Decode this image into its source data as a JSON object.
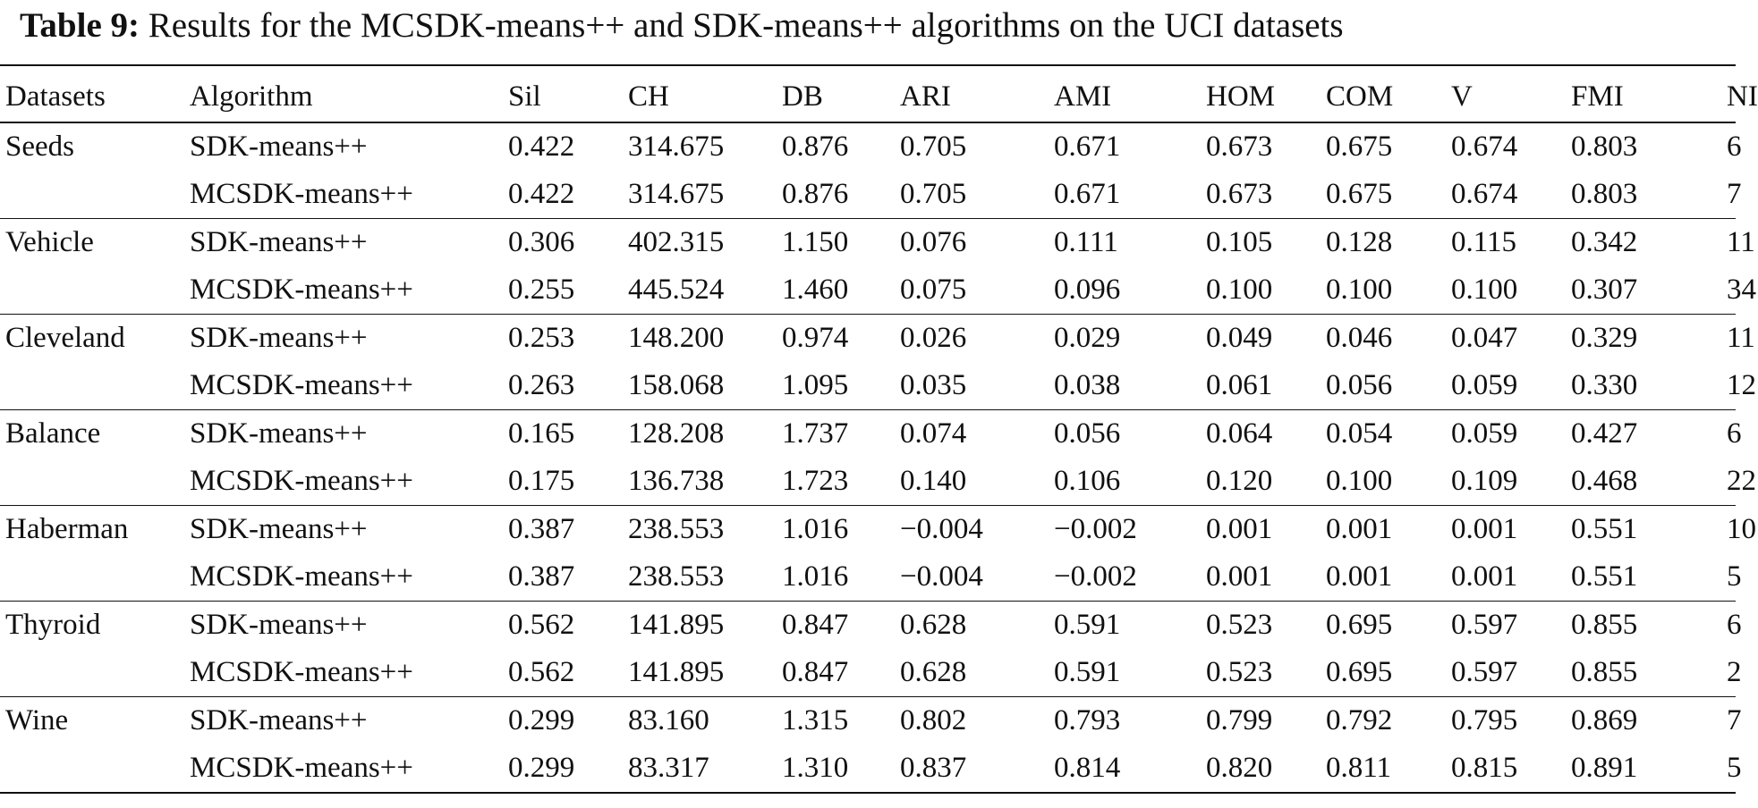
{
  "caption": {
    "label": "Table 9:",
    "text": "Results for the MCSDK-means++ and SDK-means++ algorithms on the UCI datasets"
  },
  "table": {
    "headers": [
      "Datasets",
      "Algorithm",
      "Sil",
      "CH",
      "DB",
      "ARI",
      "AMI",
      "HOM",
      "COM",
      "V",
      "FMI",
      "NI"
    ],
    "groups": [
      {
        "dataset": "Seeds",
        "rows": [
          [
            "SDK-means++",
            "0.422",
            "314.675",
            "0.876",
            "0.705",
            "0.671",
            "0.673",
            "0.675",
            "0.674",
            "0.803",
            "6"
          ],
          [
            "MCSDK-means++",
            "0.422",
            "314.675",
            "0.876",
            "0.705",
            "0.671",
            "0.673",
            "0.675",
            "0.674",
            "0.803",
            "7"
          ]
        ]
      },
      {
        "dataset": "Vehicle",
        "rows": [
          [
            "SDK-means++",
            "0.306",
            "402.315",
            "1.150",
            "0.076",
            "0.111",
            "0.105",
            "0.128",
            "0.115",
            "0.342",
            "11"
          ],
          [
            "MCSDK-means++",
            "0.255",
            "445.524",
            "1.460",
            "0.075",
            "0.096",
            "0.100",
            "0.100",
            "0.100",
            "0.307",
            "34"
          ]
        ]
      },
      {
        "dataset": "Cleveland",
        "rows": [
          [
            "SDK-means++",
            "0.253",
            "148.200",
            "0.974",
            "0.026",
            "0.029",
            "0.049",
            "0.046",
            "0.047",
            "0.329",
            "11"
          ],
          [
            "MCSDK-means++",
            "0.263",
            "158.068",
            "1.095",
            "0.035",
            "0.038",
            "0.061",
            "0.056",
            "0.059",
            "0.330",
            "12"
          ]
        ]
      },
      {
        "dataset": "Balance",
        "rows": [
          [
            "SDK-means++",
            "0.165",
            "128.208",
            "1.737",
            "0.074",
            "0.056",
            "0.064",
            "0.054",
            "0.059",
            "0.427",
            "6"
          ],
          [
            "MCSDK-means++",
            "0.175",
            "136.738",
            "1.723",
            "0.140",
            "0.106",
            "0.120",
            "0.100",
            "0.109",
            "0.468",
            "22"
          ]
        ]
      },
      {
        "dataset": "Haberman",
        "rows": [
          [
            "SDK-means++",
            "0.387",
            "238.553",
            "1.016",
            "−0.004",
            "−0.002",
            "0.001",
            "0.001",
            "0.001",
            "0.551",
            "10"
          ],
          [
            "MCSDK-means++",
            "0.387",
            "238.553",
            "1.016",
            "−0.004",
            "−0.002",
            "0.001",
            "0.001",
            "0.001",
            "0.551",
            "5"
          ]
        ]
      },
      {
        "dataset": "Thyroid",
        "rows": [
          [
            "SDK-means++",
            "0.562",
            "141.895",
            "0.847",
            "0.628",
            "0.591",
            "0.523",
            "0.695",
            "0.597",
            "0.855",
            "6"
          ],
          [
            "MCSDK-means++",
            "0.562",
            "141.895",
            "0.847",
            "0.628",
            "0.591",
            "0.523",
            "0.695",
            "0.597",
            "0.855",
            "2"
          ]
        ]
      },
      {
        "dataset": "Wine",
        "rows": [
          [
            "SDK-means++",
            "0.299",
            "83.160",
            "1.315",
            "0.802",
            "0.793",
            "0.799",
            "0.792",
            "0.795",
            "0.869",
            "7"
          ],
          [
            "MCSDK-means++",
            "0.299",
            "83.317",
            "1.310",
            "0.837",
            "0.814",
            "0.820",
            "0.811",
            "0.815",
            "0.891",
            "5"
          ]
        ]
      }
    ]
  }
}
